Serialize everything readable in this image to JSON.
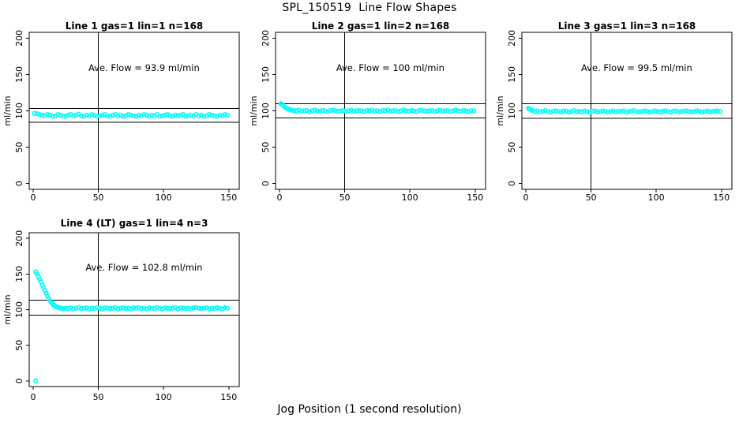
{
  "figure": {
    "title": "SPL_150519  Line Flow Shapes",
    "xlabel": "Jog Position (1 second resolution)",
    "point_color": "#00FFFF",
    "axis_color": "#000000",
    "background": "#FFFFFF"
  },
  "chart_data": [
    {
      "type": "scatter",
      "title": "Line 1 gas=1 lin=1 n=168",
      "annotation": "Ave. Flow =  93.9  ml/min",
      "ave_flow": 93.9,
      "gas": 1,
      "lin": 1,
      "n": 168,
      "ylabel": "ml/min",
      "x_ticks": [
        0,
        50,
        100,
        150
      ],
      "y_ticks": [
        0,
        50,
        100,
        150,
        200
      ],
      "xlim": [
        -3,
        158
      ],
      "ylim": [
        -8,
        208
      ],
      "ref_line_upper": 103.3,
      "ref_line_lower": 84.5,
      "vline_x": 50,
      "annotation_pos": [
        85,
        155
      ],
      "points": [
        [
          1,
          96.5
        ],
        [
          3,
          96
        ],
        [
          5,
          95
        ],
        [
          7,
          94
        ],
        [
          9,
          93.5
        ],
        [
          11,
          95
        ],
        [
          13,
          94
        ],
        [
          15,
          92.5
        ],
        [
          17,
          93
        ],
        [
          19,
          95
        ],
        [
          21,
          94
        ],
        [
          23,
          93
        ],
        [
          25,
          92.5
        ],
        [
          27,
          94
        ],
        [
          29,
          95
        ],
        [
          31,
          93
        ],
        [
          33,
          94
        ],
        [
          35,
          95.5
        ],
        [
          37,
          93
        ],
        [
          39,
          92.5
        ],
        [
          41,
          94
        ],
        [
          43,
          93
        ],
        [
          45,
          95
        ],
        [
          47,
          94
        ],
        [
          49,
          92.5
        ],
        [
          51,
          93
        ],
        [
          53,
          94
        ],
        [
          55,
          95
        ],
        [
          57,
          93
        ],
        [
          59,
          92.5
        ],
        [
          61,
          94
        ],
        [
          63,
          95
        ],
        [
          65,
          93
        ],
        [
          67,
          94
        ],
        [
          69,
          92.5
        ],
        [
          71,
          93
        ],
        [
          73,
          95
        ],
        [
          75,
          94
        ],
        [
          77,
          93
        ],
        [
          79,
          92.5
        ],
        [
          81,
          94
        ],
        [
          83,
          93
        ],
        [
          85,
          95
        ],
        [
          87,
          94
        ],
        [
          89,
          92.5
        ],
        [
          91,
          94
        ],
        [
          93,
          93
        ],
        [
          95,
          95
        ],
        [
          97,
          92.5
        ],
        [
          99,
          93
        ],
        [
          101,
          94
        ],
        [
          103,
          95
        ],
        [
          105,
          93
        ],
        [
          107,
          92.5
        ],
        [
          109,
          94
        ],
        [
          111,
          93
        ],
        [
          113,
          94
        ],
        [
          115,
          95
        ],
        [
          117,
          92.5
        ],
        [
          119,
          93
        ],
        [
          121,
          94
        ],
        [
          123,
          92.5
        ],
        [
          125,
          95
        ],
        [
          127,
          93
        ],
        [
          129,
          94
        ],
        [
          131,
          92.5
        ],
        [
          133,
          93
        ],
        [
          135,
          95
        ],
        [
          137,
          94
        ],
        [
          139,
          93
        ],
        [
          141,
          92.5
        ],
        [
          143,
          94
        ],
        [
          145,
          93
        ],
        [
          147,
          95
        ],
        [
          149,
          94
        ]
      ]
    },
    {
      "type": "scatter",
      "title": "Line 2 gas=1 lin=2 n=168",
      "annotation": "Ave. Flow =  100  ml/min",
      "ave_flow": 100,
      "gas": 1,
      "lin": 2,
      "n": 168,
      "ylabel": "ml/min",
      "x_ticks": [
        0,
        50,
        100,
        150
      ],
      "y_ticks": [
        0,
        50,
        100,
        150,
        200
      ],
      "xlim": [
        -3,
        158
      ],
      "ylim": [
        -8,
        208
      ],
      "ref_line_upper": 110,
      "ref_line_lower": 90,
      "vline_x": 50,
      "annotation_pos": [
        85,
        155
      ],
      "points": [
        [
          1,
          110
        ],
        [
          2,
          108.5
        ],
        [
          3,
          107
        ],
        [
          4,
          105.5
        ],
        [
          5,
          104
        ],
        [
          6,
          103
        ],
        [
          7,
          102.2
        ],
        [
          8,
          101.6
        ],
        [
          9,
          101.1
        ],
        [
          10,
          100.7
        ],
        [
          11,
          100.4
        ],
        [
          13,
          100
        ],
        [
          15,
          101
        ],
        [
          17,
          99.5
        ],
        [
          19,
          100
        ],
        [
          21,
          100.5
        ],
        [
          23,
          99
        ],
        [
          25,
          100
        ],
        [
          27,
          101
        ],
        [
          29,
          100
        ],
        [
          31,
          99.5
        ],
        [
          33,
          100.5
        ],
        [
          35,
          100
        ],
        [
          37,
          99
        ],
        [
          39,
          100.5
        ],
        [
          41,
          101
        ],
        [
          43,
          100
        ],
        [
          45,
          99.5
        ],
        [
          47,
          100
        ],
        [
          49,
          100.5
        ],
        [
          51,
          99
        ],
        [
          53,
          100
        ],
        [
          55,
          101
        ],
        [
          57,
          99.5
        ],
        [
          59,
          100
        ],
        [
          61,
          100.5
        ],
        [
          63,
          100
        ],
        [
          65,
          99
        ],
        [
          67,
          100.5
        ],
        [
          69,
          100
        ],
        [
          71,
          101
        ],
        [
          73,
          99.5
        ],
        [
          75,
          100
        ],
        [
          77,
          99
        ],
        [
          79,
          100.5
        ],
        [
          81,
          100
        ],
        [
          83,
          101
        ],
        [
          85,
          99.5
        ],
        [
          87,
          100
        ],
        [
          89,
          100.5
        ],
        [
          91,
          99
        ],
        [
          93,
          100
        ],
        [
          95,
          101
        ],
        [
          97,
          100
        ],
        [
          99,
          99.5
        ],
        [
          101,
          100.5
        ],
        [
          103,
          100
        ],
        [
          105,
          99
        ],
        [
          107,
          100.5
        ],
        [
          109,
          101
        ],
        [
          111,
          100
        ],
        [
          113,
          99.5
        ],
        [
          115,
          100
        ],
        [
          117,
          100.5
        ],
        [
          119,
          99
        ],
        [
          121,
          100
        ],
        [
          123,
          101
        ],
        [
          125,
          99.5
        ],
        [
          127,
          100
        ],
        [
          129,
          100.5
        ],
        [
          131,
          99
        ],
        [
          133,
          100
        ],
        [
          135,
          101
        ],
        [
          137,
          100
        ],
        [
          139,
          99.5
        ],
        [
          141,
          100.5
        ],
        [
          143,
          100
        ],
        [
          145,
          99
        ],
        [
          147,
          100.5
        ],
        [
          149,
          100
        ]
      ]
    },
    {
      "type": "scatter",
      "title": "Line 3 gas=1 lin=3 n=168",
      "annotation": "Ave. Flow =  99.5  ml/min",
      "ave_flow": 99.5,
      "gas": 1,
      "lin": 3,
      "n": 168,
      "ylabel": "ml/min",
      "x_ticks": [
        0,
        50,
        100,
        150
      ],
      "y_ticks": [
        0,
        50,
        100,
        150,
        200
      ],
      "xlim": [
        -3,
        158
      ],
      "ylim": [
        -8,
        208
      ],
      "ref_line_upper": 109.5,
      "ref_line_lower": 89.6,
      "vline_x": 50,
      "annotation_pos": [
        85,
        155
      ],
      "points": [
        [
          2,
          103.5
        ],
        [
          3,
          102.5
        ],
        [
          4,
          101.5
        ],
        [
          5,
          100.5
        ],
        [
          7,
          99
        ],
        [
          9,
          100
        ],
        [
          11,
          98.5
        ],
        [
          13,
          99.5
        ],
        [
          15,
          100.5
        ],
        [
          17,
          99
        ],
        [
          19,
          98
        ],
        [
          21,
          99.5
        ],
        [
          23,
          100
        ],
        [
          25,
          99
        ],
        [
          27,
          98.5
        ],
        [
          29,
          100
        ],
        [
          31,
          99.5
        ],
        [
          33,
          98
        ],
        [
          35,
          99
        ],
        [
          37,
          100.5
        ],
        [
          39,
          99
        ],
        [
          41,
          99.5
        ],
        [
          43,
          98.5
        ],
        [
          45,
          100
        ],
        [
          47,
          99
        ],
        [
          49,
          98
        ],
        [
          51,
          99.5
        ],
        [
          53,
          100
        ],
        [
          55,
          98.5
        ],
        [
          57,
          99
        ],
        [
          59,
          100
        ],
        [
          61,
          99.5
        ],
        [
          63,
          98
        ],
        [
          65,
          99
        ],
        [
          67,
          100
        ],
        [
          69,
          98.5
        ],
        [
          71,
          99.5
        ],
        [
          73,
          99
        ],
        [
          75,
          100
        ],
        [
          77,
          98
        ],
        [
          79,
          99
        ],
        [
          81,
          99.5
        ],
        [
          83,
          100.5
        ],
        [
          85,
          99
        ],
        [
          87,
          98.5
        ],
        [
          89,
          99
        ],
        [
          91,
          100
        ],
        [
          93,
          99.5
        ],
        [
          95,
          98
        ],
        [
          97,
          99
        ],
        [
          99,
          100
        ],
        [
          101,
          99
        ],
        [
          103,
          98.5
        ],
        [
          105,
          99.5
        ],
        [
          107,
          100
        ],
        [
          109,
          99
        ],
        [
          111,
          98
        ],
        [
          113,
          99.5
        ],
        [
          115,
          100
        ],
        [
          117,
          98.5
        ],
        [
          119,
          99
        ],
        [
          121,
          99.5
        ],
        [
          123,
          100
        ],
        [
          125,
          99
        ],
        [
          127,
          98.5
        ],
        [
          129,
          99
        ],
        [
          131,
          100
        ],
        [
          133,
          99.5
        ],
        [
          135,
          98
        ],
        [
          137,
          99
        ],
        [
          139,
          100
        ],
        [
          141,
          98.5
        ],
        [
          143,
          99
        ],
        [
          145,
          99.5
        ],
        [
          147,
          100
        ],
        [
          149,
          99
        ]
      ]
    },
    {
      "type": "scatter",
      "title": "Line 4 (LT) gas=1 lin=4 n=3",
      "annotation": "Ave. Flow =  102.8  ml/min",
      "ave_flow": 102.8,
      "gas": 1,
      "lin": 4,
      "n": 3,
      "ylabel": "ml/min",
      "x_ticks": [
        0,
        50,
        100,
        150
      ],
      "y_ticks": [
        0,
        50,
        100,
        150,
        200
      ],
      "xlim": [
        -3,
        158
      ],
      "ylim": [
        -8,
        208
      ],
      "ref_line_upper": 113.1,
      "ref_line_lower": 92.5,
      "vline_x": 50,
      "annotation_pos": [
        85,
        155
      ],
      "points": [
        [
          2,
          0
        ],
        [
          2,
          153
        ],
        [
          3,
          150
        ],
        [
          4,
          146.5
        ],
        [
          5,
          143
        ],
        [
          6,
          139
        ],
        [
          7,
          135
        ],
        [
          8,
          131
        ],
        [
          9,
          127
        ],
        [
          10,
          123
        ],
        [
          11,
          119
        ],
        [
          12,
          115.5
        ],
        [
          13,
          112.5
        ],
        [
          14,
          110
        ],
        [
          15,
          108
        ],
        [
          16,
          106.5
        ],
        [
          17,
          105
        ],
        [
          18,
          104
        ],
        [
          19,
          103.2
        ],
        [
          20,
          102.6
        ],
        [
          21,
          102.2
        ],
        [
          22,
          101.8
        ],
        [
          23,
          101.5
        ],
        [
          25,
          102
        ],
        [
          27,
          101.5
        ],
        [
          29,
          102.5
        ],
        [
          31,
          101
        ],
        [
          33,
          102
        ],
        [
          35,
          103
        ],
        [
          37,
          101.5
        ],
        [
          39,
          102
        ],
        [
          41,
          102.5
        ],
        [
          43,
          101
        ],
        [
          45,
          102
        ],
        [
          47,
          101.5
        ],
        [
          49,
          103
        ],
        [
          51,
          102
        ],
        [
          53,
          101
        ],
        [
          55,
          102.5
        ],
        [
          57,
          102
        ],
        [
          59,
          101.5
        ],
        [
          61,
          102
        ],
        [
          63,
          103
        ],
        [
          65,
          101
        ],
        [
          67,
          102
        ],
        [
          69,
          102.5
        ],
        [
          71,
          101.5
        ],
        [
          73,
          102
        ],
        [
          75,
          101
        ],
        [
          77,
          102.5
        ],
        [
          79,
          102
        ],
        [
          81,
          103
        ],
        [
          83,
          101.5
        ],
        [
          85,
          102
        ],
        [
          87,
          101
        ],
        [
          89,
          102.5
        ],
        [
          91,
          102
        ],
        [
          93,
          101.5
        ],
        [
          95,
          103
        ],
        [
          97,
          102
        ],
        [
          99,
          101
        ],
        [
          101,
          102.5
        ],
        [
          103,
          102
        ],
        [
          105,
          101.5
        ],
        [
          107,
          102
        ],
        [
          109,
          103
        ],
        [
          111,
          101
        ],
        [
          113,
          102.5
        ],
        [
          115,
          102
        ],
        [
          117,
          101.5
        ],
        [
          119,
          102
        ],
        [
          121,
          101
        ],
        [
          123,
          102.5
        ],
        [
          125,
          103
        ],
        [
          127,
          102
        ],
        [
          129,
          101.5
        ],
        [
          131,
          102
        ],
        [
          133,
          102.5
        ],
        [
          135,
          101
        ],
        [
          137,
          102
        ],
        [
          139,
          101.5
        ],
        [
          141,
          102.5
        ],
        [
          143,
          102
        ],
        [
          145,
          101
        ],
        [
          147,
          102.5
        ],
        [
          149,
          102
        ]
      ]
    }
  ]
}
